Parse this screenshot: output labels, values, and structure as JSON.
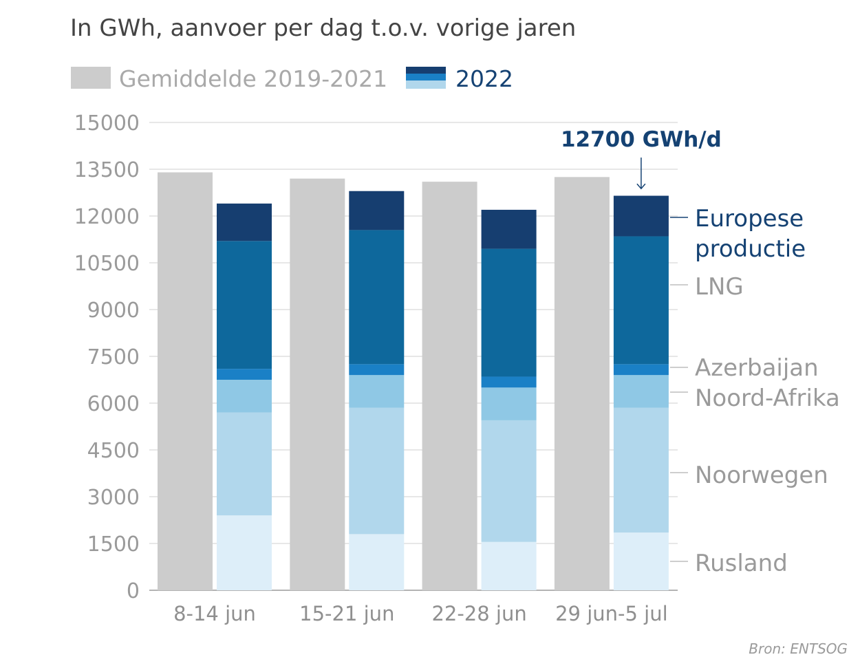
{
  "chart_data": {
    "type": "bar",
    "title": "In GWh, aanvoer per dag t.o.v. vorige jaren",
    "xlabel": "",
    "ylabel": "",
    "ylim": [
      0,
      15000
    ],
    "yticks": [
      0,
      1500,
      3000,
      4500,
      6000,
      7500,
      9000,
      10500,
      12000,
      13500,
      15000
    ],
    "ytick_labels": [
      "0",
      "1500",
      "3000",
      "4500",
      "6000",
      "7500",
      "9000",
      "10500",
      "12000",
      "13500",
      "15000"
    ],
    "categories": [
      "8-14 jun",
      "15-21 jun",
      "22-28 jun",
      "29 jun-5 jul"
    ],
    "legend": {
      "average_label": "Gemiddelde 2019-2021",
      "current_label": "2022"
    },
    "average": {
      "name": "Gemiddelde 2019-2021",
      "color": "#cccccc",
      "values": [
        13400,
        13200,
        13100,
        13250
      ]
    },
    "series": [
      {
        "name": "Rusland",
        "color": "#ddeef9",
        "values": [
          2400,
          1800,
          1550,
          1850
        ]
      },
      {
        "name": "Noorwegen",
        "color": "#b1d7ec",
        "values": [
          3300,
          4050,
          3900,
          4000
        ]
      },
      {
        "name": "Noord-Afrika",
        "color": "#8fc8e5",
        "values": [
          1050,
          1050,
          1050,
          1050
        ]
      },
      {
        "name": "Azerbaijan",
        "color": "#1a80c6",
        "values": [
          350,
          350,
          350,
          350
        ]
      },
      {
        "name": "LNG",
        "color": "#0e689c",
        "values": [
          4100,
          4300,
          4100,
          4100
        ]
      },
      {
        "name": "Europese productie",
        "color": "#163e70",
        "values": [
          1200,
          1250,
          1250,
          1300
        ]
      }
    ],
    "series_labels": [
      {
        "series": "Rusland",
        "lines": [
          "Rusland"
        ]
      },
      {
        "series": "Noorwegen",
        "lines": [
          "Noorwegen"
        ]
      },
      {
        "series": "Noord-Afrika",
        "lines": [
          "Noord-Afrika"
        ]
      },
      {
        "series": "Azerbaijan",
        "lines": [
          "Azerbaijan"
        ]
      },
      {
        "series": "LNG",
        "lines": [
          "LNG"
        ]
      },
      {
        "series": "Europese productie",
        "lines": [
          "Europese",
          "productie"
        ]
      }
    ],
    "annotation": {
      "text": "12700 GWh/d",
      "category": "29 jun-5 jul",
      "value": 12700
    },
    "source": "Bron: ENTSOG"
  }
}
